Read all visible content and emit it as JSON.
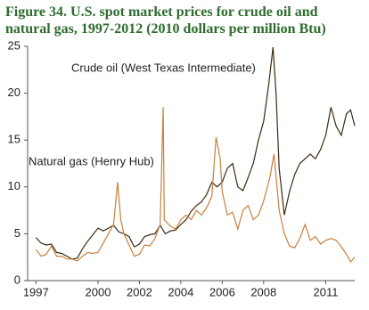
{
  "chart_data": {
    "type": "line",
    "title": "Figure 34. U.S. spot market prices for crude oil and natural gas, 1997-2012 (2010 dollars per million Btu)",
    "xlim": [
      1996.6,
      2012.4
    ],
    "xticks": [
      1997,
      2000,
      2002,
      2004,
      2006,
      2008,
      2011
    ],
    "ylim": [
      0,
      25
    ],
    "yticks": [
      0,
      5,
      10,
      15,
      20,
      25
    ],
    "series": [
      {
        "name": "Crude oil (West Texas Intermediate)",
        "color": "#3b2a14",
        "x": [
          1997.0,
          1997.25,
          1997.5,
          1997.75,
          1998.0,
          1998.25,
          1998.5,
          1998.75,
          1999.0,
          1999.25,
          1999.5,
          1999.75,
          2000.0,
          2000.25,
          2000.5,
          2000.75,
          2001.0,
          2001.25,
          2001.5,
          2001.75,
          2002.0,
          2002.25,
          2002.5,
          2002.75,
          2003.0,
          2003.25,
          2003.5,
          2003.75,
          2004.0,
          2004.25,
          2004.5,
          2004.75,
          2005.0,
          2005.25,
          2005.5,
          2005.75,
          2006.0,
          2006.25,
          2006.5,
          2006.75,
          2007.0,
          2007.25,
          2007.5,
          2007.75,
          2008.0,
          2008.25,
          2008.45,
          2008.6,
          2008.75,
          2009.0,
          2009.25,
          2009.5,
          2009.75,
          2010.0,
          2010.25,
          2010.5,
          2010.75,
          2011.0,
          2011.25,
          2011.5,
          2011.75,
          2012.0,
          2012.2,
          2012.4
        ],
        "values": [
          4.6,
          4.0,
          3.8,
          3.9,
          3.0,
          2.9,
          2.6,
          2.3,
          2.4,
          3.4,
          4.2,
          4.9,
          5.6,
          5.3,
          5.6,
          5.9,
          5.2,
          5.0,
          4.7,
          3.6,
          3.9,
          4.7,
          4.9,
          5.0,
          5.9,
          5.0,
          5.3,
          5.4,
          6.0,
          6.5,
          7.4,
          8.0,
          8.4,
          9.2,
          10.5,
          10.0,
          10.5,
          12.0,
          12.5,
          10.0,
          9.6,
          11.0,
          12.5,
          15.0,
          17.0,
          21.0,
          24.9,
          20.0,
          12.0,
          7.0,
          9.5,
          11.3,
          12.5,
          13.0,
          13.5,
          13.0,
          14.0,
          15.5,
          18.5,
          16.5,
          15.5,
          17.8,
          18.2,
          16.5
        ]
      },
      {
        "name": "Natural gas (Henry Hub)",
        "color": "#c8803c",
        "x": [
          1997.0,
          1997.25,
          1997.5,
          1997.75,
          1998.0,
          1998.25,
          1998.5,
          1998.75,
          1999.0,
          1999.25,
          1999.5,
          1999.75,
          2000.0,
          2000.25,
          2000.5,
          2000.75,
          2000.95,
          2001.1,
          2001.25,
          2001.5,
          2001.75,
          2002.0,
          2002.25,
          2002.5,
          2002.75,
          2003.0,
          2003.15,
          2003.2,
          2003.5,
          2003.75,
          2004.0,
          2004.25,
          2004.5,
          2004.75,
          2005.0,
          2005.25,
          2005.5,
          2005.7,
          2005.9,
          2006.0,
          2006.25,
          2006.5,
          2006.75,
          2007.0,
          2007.25,
          2007.5,
          2007.75,
          2008.0,
          2008.3,
          2008.5,
          2008.75,
          2009.0,
          2009.25,
          2009.5,
          2009.75,
          2010.0,
          2010.25,
          2010.5,
          2010.75,
          2011.0,
          2011.25,
          2011.5,
          2011.75,
          2012.0,
          2012.2,
          2012.4
        ],
        "values": [
          3.3,
          2.6,
          2.8,
          3.7,
          2.6,
          2.6,
          2.3,
          2.3,
          2.1,
          2.6,
          3.0,
          2.9,
          3.0,
          4.0,
          5.0,
          6.0,
          10.5,
          6.5,
          5.0,
          3.8,
          2.6,
          2.8,
          3.8,
          3.7,
          4.5,
          6.0,
          18.5,
          6.5,
          5.8,
          5.5,
          6.5,
          7.0,
          6.5,
          7.5,
          7.0,
          7.8,
          9.0,
          15.3,
          13.0,
          9.5,
          7.0,
          7.3,
          5.5,
          7.5,
          8.0,
          6.5,
          7.0,
          8.5,
          11.0,
          13.5,
          7.5,
          5.0,
          3.7,
          3.5,
          4.5,
          6.0,
          4.3,
          4.7,
          3.9,
          4.3,
          4.5,
          4.3,
          3.6,
          2.8,
          2.0,
          2.5
        ]
      }
    ]
  }
}
